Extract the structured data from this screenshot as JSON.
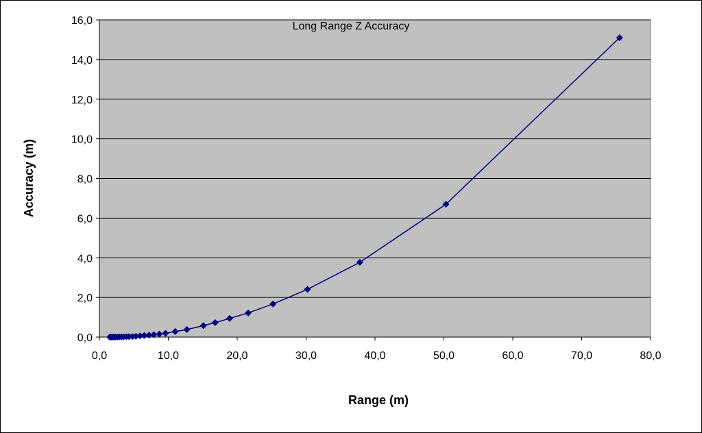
{
  "chart_data": {
    "type": "scatter",
    "title": "Long Range Z Accuracy",
    "xlabel": "Range (m)",
    "ylabel": "Accuracy (m)",
    "xlim": [
      0,
      80
    ],
    "ylim": [
      0,
      16
    ],
    "x_ticks": [
      "0,0",
      "10,0",
      "20,0",
      "30,0",
      "40,0",
      "50,0",
      "60,0",
      "70,0",
      "80,0"
    ],
    "y_ticks": [
      "0,0",
      "2,0",
      "4,0",
      "6,0",
      "8,0",
      "10,0",
      "12,0",
      "14,0",
      "16,0"
    ],
    "grid": "horizontal",
    "plot_background": "#c0c0c0",
    "series_color": "#000080",
    "marker": "diamond",
    "series": [
      {
        "points": [
          [
            1.5,
            0.0
          ],
          [
            1.7,
            0.0
          ],
          [
            1.9,
            0.0
          ],
          [
            2.1,
            0.0
          ],
          [
            2.3,
            0.0
          ],
          [
            2.6,
            0.0
          ],
          [
            2.9,
            0.01
          ],
          [
            3.2,
            0.01
          ],
          [
            3.5,
            0.01
          ],
          [
            3.9,
            0.02
          ],
          [
            4.3,
            0.02
          ],
          [
            4.8,
            0.03
          ],
          [
            5.3,
            0.04
          ],
          [
            5.9,
            0.06
          ],
          [
            6.5,
            0.08
          ],
          [
            7.2,
            0.1
          ],
          [
            7.9,
            0.12
          ],
          [
            8.7,
            0.15
          ],
          [
            9.6,
            0.19
          ],
          [
            11.0,
            0.28
          ],
          [
            12.7,
            0.38
          ],
          [
            15.1,
            0.58
          ],
          [
            16.8,
            0.73
          ],
          [
            18.9,
            0.94
          ],
          [
            21.6,
            1.22
          ],
          [
            25.2,
            1.67
          ],
          [
            30.2,
            2.41
          ],
          [
            37.8,
            3.77
          ],
          [
            50.3,
            6.7
          ],
          [
            75.5,
            15.1
          ]
        ]
      }
    ]
  }
}
